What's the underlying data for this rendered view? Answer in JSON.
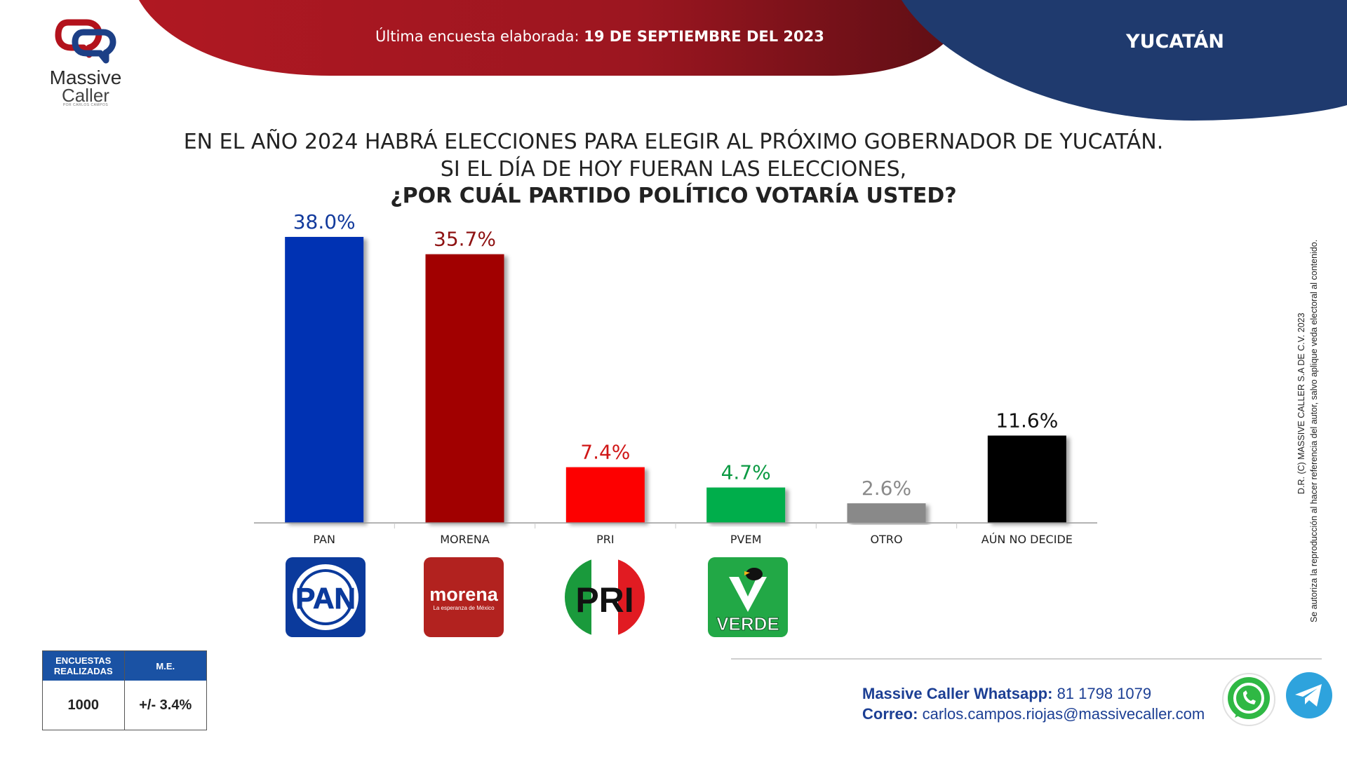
{
  "header": {
    "survey_label": "Última encuesta elaborada:",
    "survey_date": "19 DE SEPTIEMBRE DEL 2023",
    "state": "YUCATÁN",
    "colors": {
      "red": "#a4141d",
      "navy": "#1f3a6e"
    }
  },
  "logo": {
    "line1": "Massive",
    "line2": "Caller",
    "tagline": "POR CARLOS CAMPOS",
    "icon": "massive-caller-logo-icon"
  },
  "question": {
    "line1": "EN EL AÑO 2024 HABRÁ ELECCIONES PARA ELEGIR AL PRÓXIMO GOBERNADOR DE YUCATÁN.",
    "line2": "SI EL DÍA DE HOY FUERAN LAS ELECCIONES,",
    "line3": "¿POR CUÁL PARTIDO POLÍTICO VOTARÍA USTED?"
  },
  "chart_data": {
    "type": "bar",
    "categories": [
      "PAN",
      "MORENA",
      "PRI",
      "PVEM",
      "OTRO",
      "AÚN NO DECIDE"
    ],
    "values": [
      38.0,
      35.7,
      7.4,
      4.7,
      2.6,
      11.6
    ],
    "value_labels": [
      "38.0%",
      "35.7%",
      "7.4%",
      "4.7%",
      "2.6%",
      "11.6%"
    ],
    "colors": [
      "#0433b3",
      "#a10204",
      "#fd0100",
      "#02ae4c",
      "#898989",
      "#000000"
    ],
    "label_colors": [
      "#123a9c",
      "#8e1212",
      "#d01616",
      "#0b9a43",
      "#8a8a8a",
      "#111111"
    ],
    "ylim": [
      0,
      40
    ],
    "grid": false,
    "legend": "none"
  },
  "party_logos": [
    {
      "name": "PAN",
      "text": "PAN",
      "icon": "pan-logo-icon",
      "bg": "#0b3a9c"
    },
    {
      "name": "MORENA",
      "text": "morena",
      "subtext": "La esperanza de México",
      "icon": "morena-logo-icon",
      "bg": "#b2221f"
    },
    {
      "name": "PRI",
      "text": "PRI",
      "icon": "pri-logo-icon"
    },
    {
      "name": "VERDE",
      "text": "VERDE",
      "icon": "pvem-logo-icon",
      "bg": "#22a846"
    }
  ],
  "copyright": {
    "line1": "D.R. (C) MASSIVE CALLER S.A DE C.V. 2023",
    "line2": "Se autoriza la reproducción al hacer referencia del autor, salvo aplique veda electoral al contenido."
  },
  "stats_table": {
    "headers": [
      "ENCUESTAS REALIZADAS",
      "M.E."
    ],
    "values": [
      "1000",
      "+/- 3.4%"
    ],
    "header_color": "#1a52a4"
  },
  "contact": {
    "whatsapp_label": "Massive Caller Whatsapp:",
    "whatsapp_number": "81 1798 1079",
    "email_label": "Correo:",
    "email": "carlos.campos.riojas@massivecaller.com",
    "icons": [
      "whatsapp-icon",
      "telegram-icon"
    ]
  }
}
